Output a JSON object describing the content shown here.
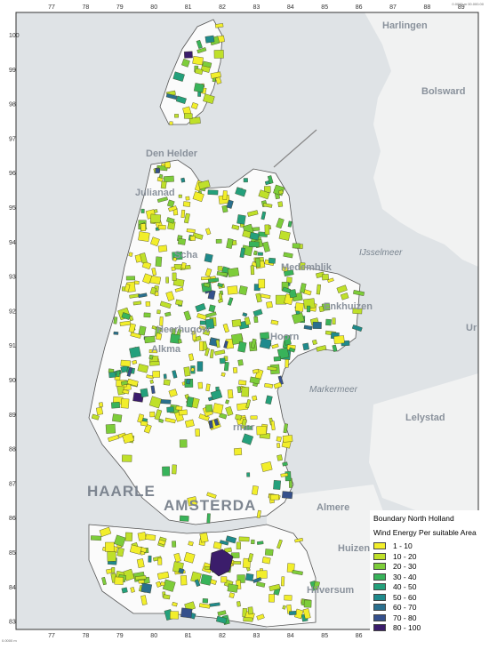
{
  "map": {
    "x_ticks": [
      "77",
      "78",
      "79",
      "80",
      "81",
      "82",
      "83",
      "84",
      "85",
      "86",
      "87",
      "88",
      "89"
    ],
    "y_ticks": [
      "100",
      "99",
      "98",
      "97",
      "96",
      "95",
      "94",
      "93",
      "92",
      "91",
      "90",
      "89",
      "88",
      "87",
      "86",
      "85",
      "84",
      "83"
    ],
    "place_labels": {
      "harlingen": "Harlingen",
      "bolsward": "Bolsward",
      "den_helder": "Den Helder",
      "julianadorp": "Julianad",
      "schagen": "Scha",
      "medemblik": "Medemblik",
      "ijsselmeer": "IJsselmeer",
      "enkhuizen": "Enkhuizen",
      "heerhugowaard": "Heerhugow",
      "alkmaar": "Alkma",
      "hoorn": "Hoorn",
      "markermeer": "Markermeer",
      "lelystad": "Lelystad",
      "purmerend": "rmer",
      "haarlem": "HAARLE",
      "amsterdam": "AMSTERDA",
      "almere": "Almere",
      "huizen": "Huizen",
      "hilversum": "Hilversum",
      "urk": "Ur"
    },
    "tiny_top_right": "0.0000 m\n00.000.00",
    "tiny_bottom_left": "0.0000 m"
  },
  "legend": {
    "boundary_title": "Boundary North Holland",
    "layer_title": "Wind Energy Per suitable Area",
    "classes": [
      {
        "label": "1 - 10",
        "color": "#f2ee2b"
      },
      {
        "label": "10 - 20",
        "color": "#bfe02a"
      },
      {
        "label": "20 - 30",
        "color": "#7dcd3a"
      },
      {
        "label": "30 - 40",
        "color": "#38b35a"
      },
      {
        "label": "40 - 50",
        "color": "#24a07c"
      },
      {
        "label": "50 - 60",
        "color": "#1f8a8c"
      },
      {
        "label": "60 - 70",
        "color": "#2a6f8e"
      },
      {
        "label": "70 - 80",
        "color": "#35508c"
      },
      {
        "label": "80 - 100",
        "color": "#3b1d6b"
      }
    ]
  },
  "colors": {
    "water": "#dfe3e6",
    "land_outside": "#f3f4f4",
    "province": "#fbfbfb",
    "boundary": "#555555"
  }
}
